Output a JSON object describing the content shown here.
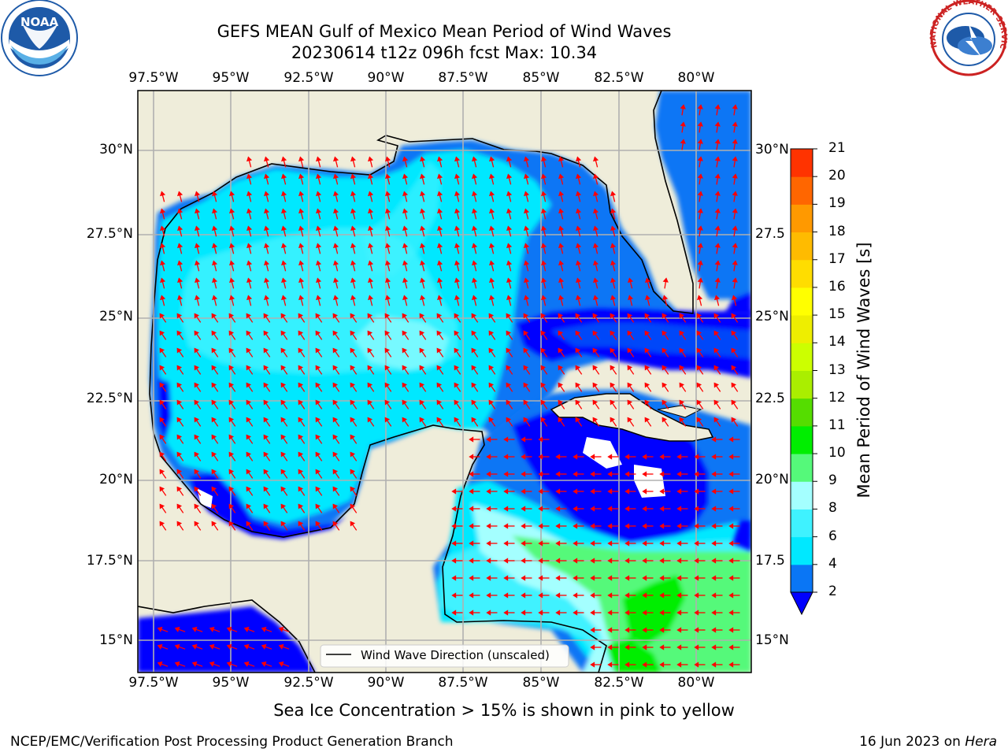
{
  "header": {
    "title_line1": "GEFS MEAN Gulf of Mexico Mean Period of Wind Waves",
    "title_line2": "20230614 t12z 096h fcst   Max: 10.34"
  },
  "logos": {
    "noaa_text": "NOAA",
    "noaa_ring_text": "NATIONAL OCEANIC AND ATMOSPHERIC ADMINISTRATION · U.S. DEPARTMENT OF COMMERCE",
    "nws_ring_text": "NATIONAL WEATHER SERVICE"
  },
  "map": {
    "lon_labels": [
      "97.5°W",
      "95°W",
      "92.5°W",
      "90°W",
      "87.5°W",
      "85°W",
      "82.5°W",
      "80°W"
    ],
    "lat_labels_left": [
      "30°N",
      "27.5°N",
      "25°N",
      "22.5°N",
      "20°N",
      "17.5°N",
      "15°N"
    ],
    "lat_labels_right": [
      "30°N",
      "27.5",
      "25°N",
      "22.5",
      "20°N",
      "17.5",
      "15°N"
    ],
    "legend_label": "Wind Wave Direction (unscaled)",
    "land_color": "#efedda",
    "arrow_color": "#ff0000",
    "grid_color": "#b0b0b0"
  },
  "colorbar": {
    "title": "Mean Period of Wind Waves [s]",
    "ticks": [
      "2",
      "4",
      "6",
      "8",
      "9",
      "10",
      "11",
      "12",
      "13",
      "14",
      "15",
      "16",
      "17",
      "18",
      "19",
      "20",
      "21"
    ],
    "extend_color": "#0000ff",
    "colors": [
      "#0a76f5",
      "#00e8ff",
      "#3ff2ff",
      "#a4ffff",
      "#55f97a",
      "#00ee00",
      "#55dd00",
      "#aaee00",
      "#ccff00",
      "#eeee00",
      "#ffff00",
      "#ffdd00",
      "#ffbb00",
      "#ff9900",
      "#ff6600",
      "#ff3300",
      "#ff0000"
    ]
  },
  "notes": {
    "ice": "Sea Ice Concentration > 15% is shown in pink to yellow",
    "footer_left": "NCEP/EMC/Verification Post Processing Product Generation Branch",
    "footer_date": "16 Jun 2023 on ",
    "footer_host": "Hera"
  }
}
